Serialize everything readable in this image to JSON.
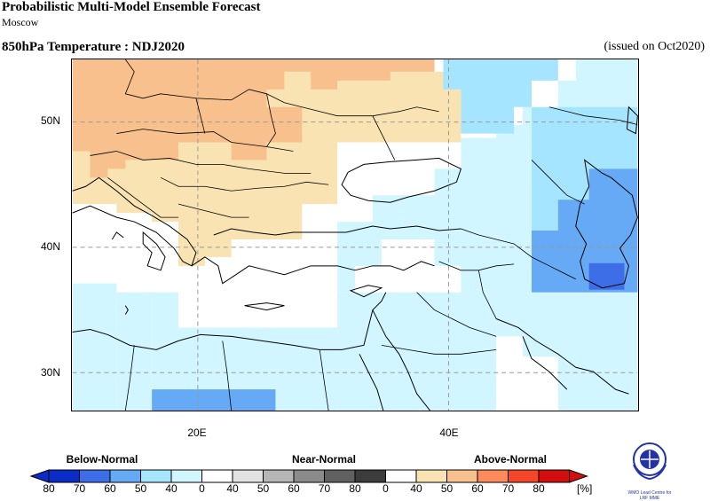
{
  "header": {
    "title": "Probabilistic Multi-Model Ensemble Forecast",
    "subtitle": "Moscow",
    "variable": "850hPa Temperature : NDJ2020",
    "issued": "(issued on Oct2020)"
  },
  "map": {
    "lat_labels": [
      "50N",
      "40N",
      "30N"
    ],
    "lon_labels": [
      "20E",
      "40E"
    ],
    "extent": {
      "lon": [
        10,
        55
      ],
      "lat": [
        27,
        55
      ]
    }
  },
  "legend": {
    "categories": {
      "below": "Below-Normal",
      "near": "Near-Normal",
      "above": "Above-Normal"
    },
    "ticks": [
      "80",
      "70",
      "60",
      "50",
      "40",
      "0",
      "40",
      "50",
      "60",
      "70",
      "80",
      "0",
      "40",
      "50",
      "60",
      "70",
      "80"
    ],
    "unit": "[%]",
    "colors": {
      "below": [
        "#0a2dc8",
        "#3d6ee8",
        "#66aaf5",
        "#a6e5ff",
        "#d1f6ff"
      ],
      "near": [
        "#ffffff",
        "#e2e2e2",
        "#b6b6b6",
        "#8b8b8b",
        "#606060",
        "#3c3c3c"
      ],
      "above": [
        "#ffffff",
        "#f9e3b2",
        "#f8c08d",
        "#fd8a5a",
        "#f5462a",
        "#d20e0e"
      ]
    }
  },
  "logo": {
    "line1": "WMO Lead Centre for",
    "line2": "LRF MME"
  }
}
